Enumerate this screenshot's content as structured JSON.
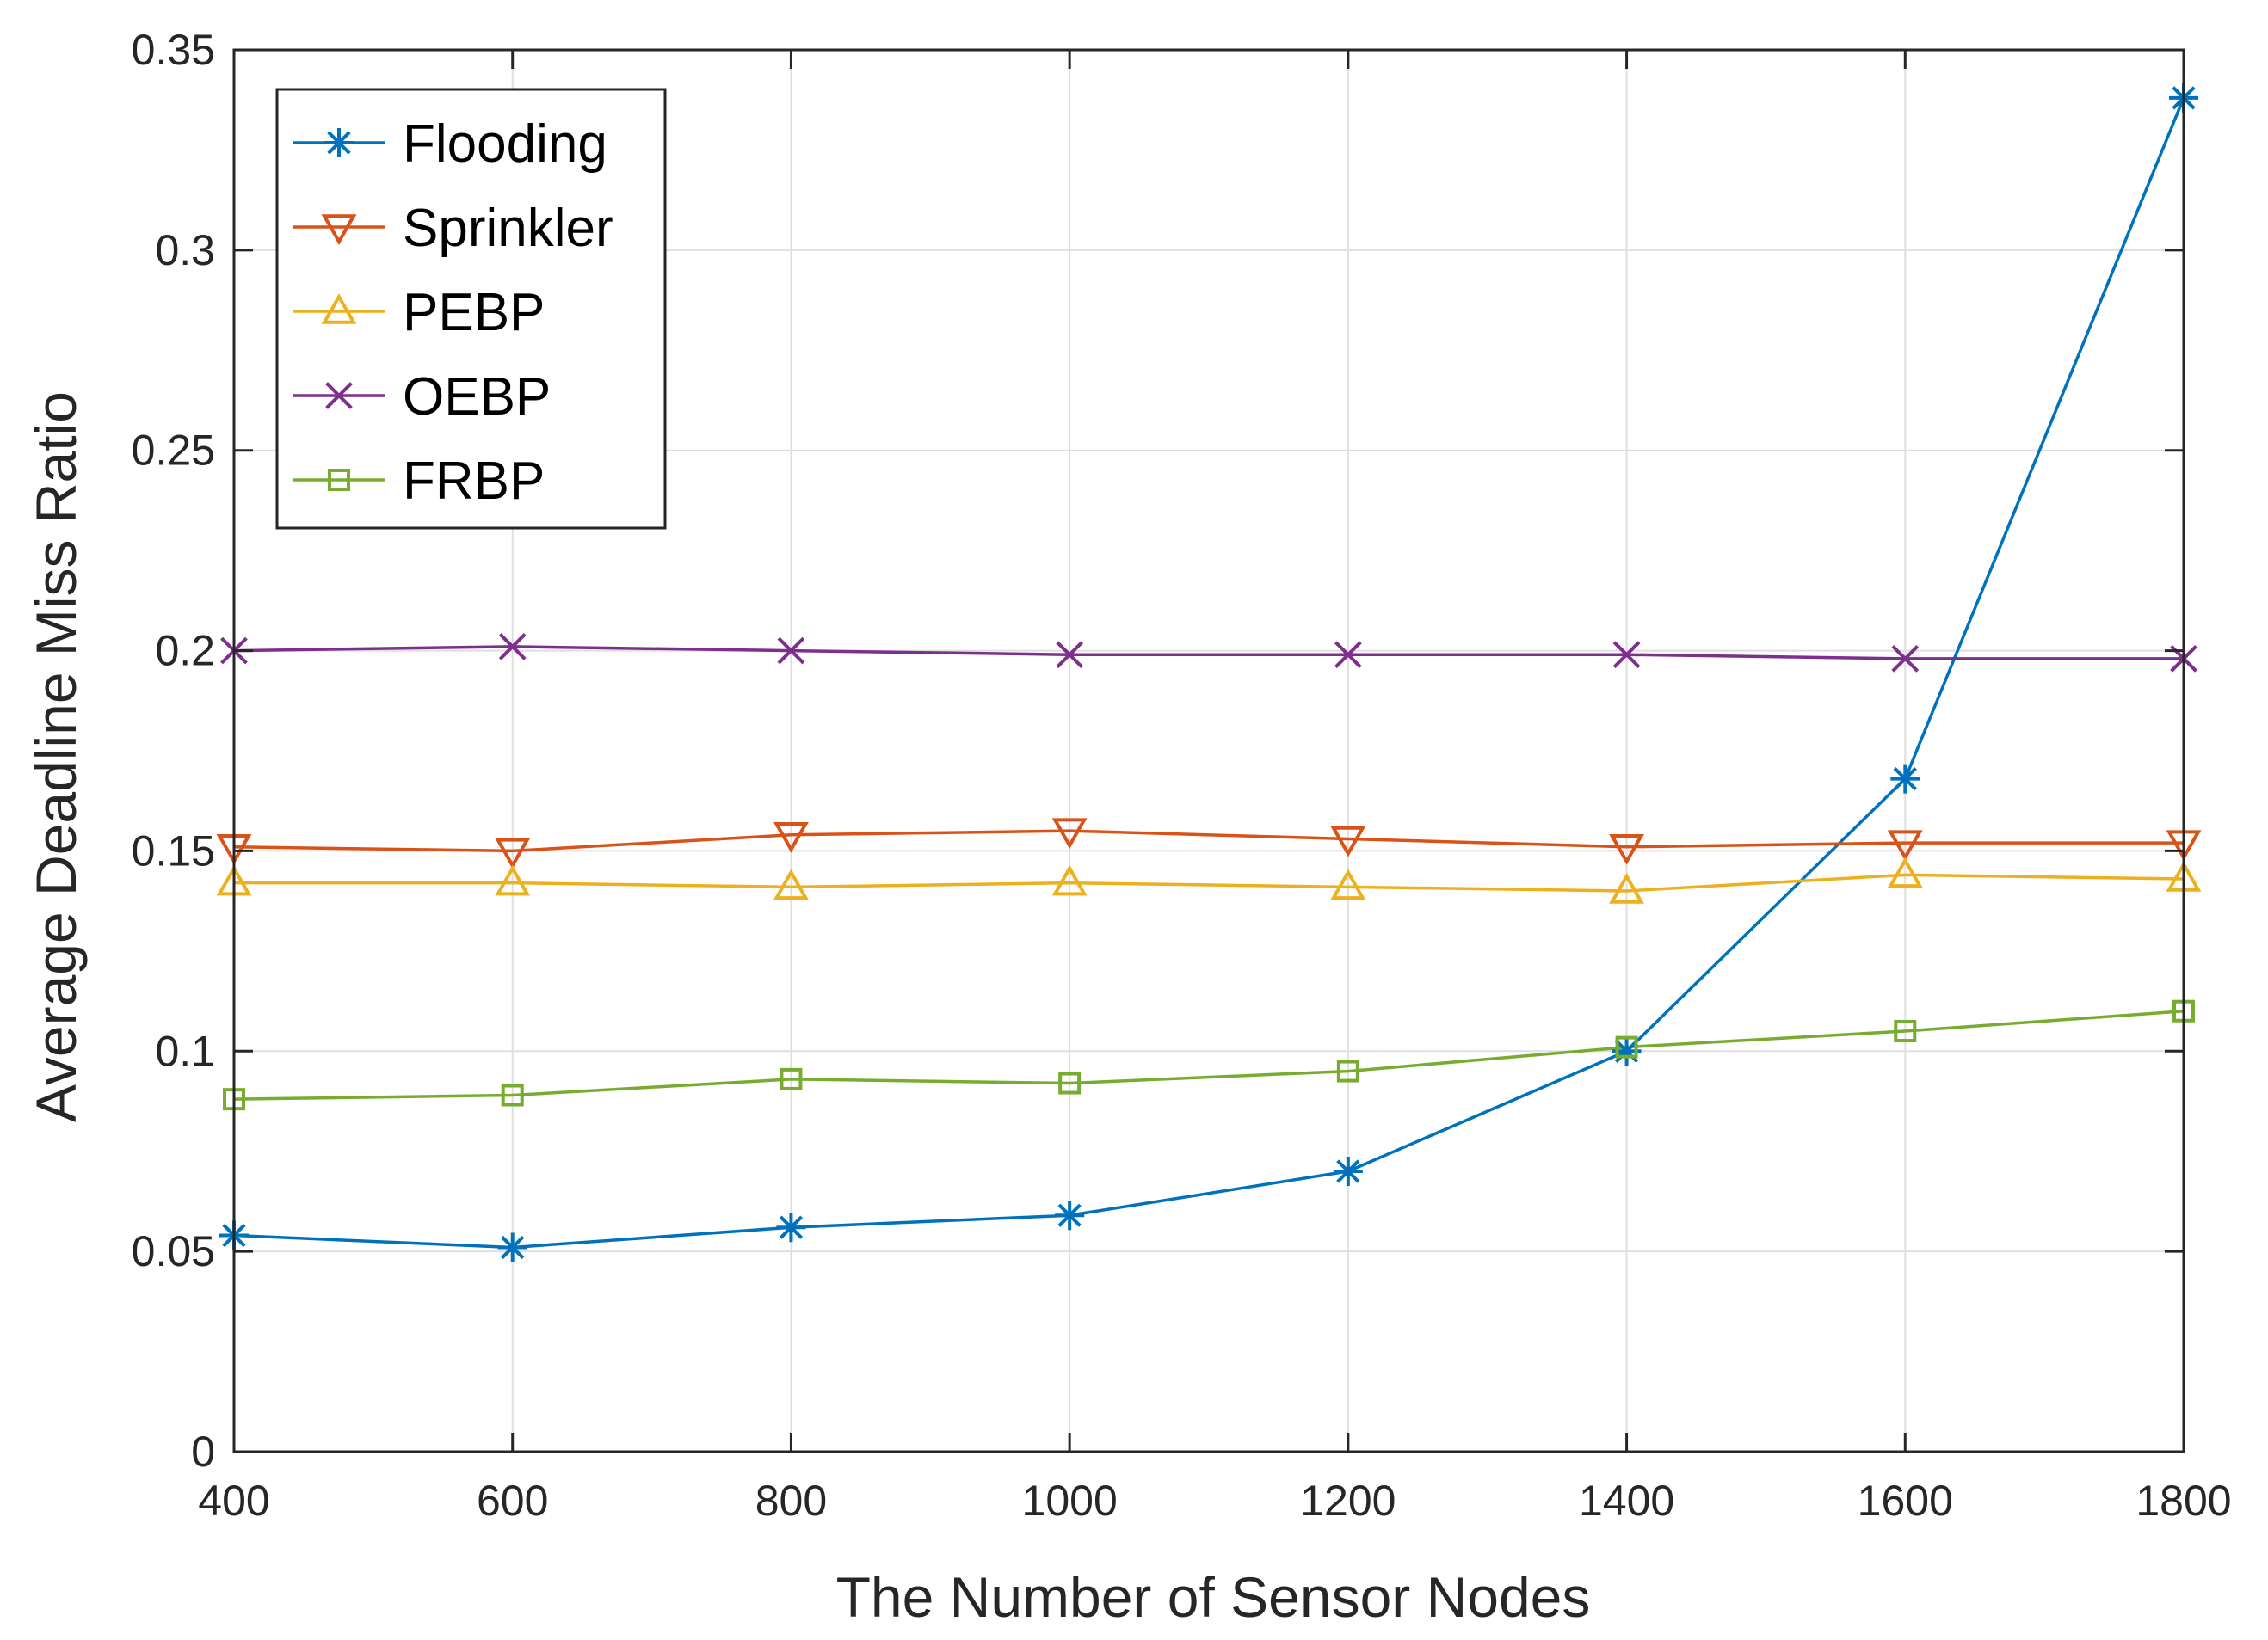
{
  "chart_data": {
    "type": "line",
    "title": "",
    "xlabel": "The Number of Sensor Nodes",
    "ylabel": "Average Deadline Miss Ratio",
    "x": [
      400,
      600,
      800,
      1000,
      1200,
      1400,
      1600,
      1800
    ],
    "xlim": [
      400,
      1800
    ],
    "ylim": [
      0,
      0.35
    ],
    "xticks": [
      400,
      600,
      800,
      1000,
      1200,
      1400,
      1600,
      1800
    ],
    "xtick_labels": [
      "400",
      "600",
      "800",
      "1000",
      "1200",
      "1400",
      "1600",
      "1800"
    ],
    "yticks": [
      0,
      0.05,
      0.1,
      0.15,
      0.2,
      0.25,
      0.3,
      0.35
    ],
    "ytick_labels": [
      "0",
      "0.05",
      "0.1",
      "0.15",
      "0.2",
      "0.25",
      "0.3",
      "0.35"
    ],
    "grid": true,
    "legend_position": "top-left",
    "series": [
      {
        "name": "Flooding",
        "color": "#0072BD",
        "marker": "asterisk",
        "values": [
          0.054,
          0.051,
          0.056,
          0.059,
          0.07,
          0.1,
          0.168,
          0.338
        ]
      },
      {
        "name": "Sprinkler",
        "color": "#D95319",
        "marker": "triangle-down",
        "values": [
          0.151,
          0.15,
          0.154,
          0.155,
          0.153,
          0.151,
          0.152,
          0.152
        ]
      },
      {
        "name": "PEBP",
        "color": "#EDB120",
        "marker": "triangle-up",
        "values": [
          0.142,
          0.142,
          0.141,
          0.142,
          0.141,
          0.14,
          0.144,
          0.143
        ]
      },
      {
        "name": "OEBP",
        "color": "#7E2F8E",
        "marker": "x",
        "values": [
          0.2,
          0.201,
          0.2,
          0.199,
          0.199,
          0.199,
          0.198,
          0.198
        ]
      },
      {
        "name": "FRBP",
        "color": "#77AC30",
        "marker": "square",
        "values": [
          0.088,
          0.089,
          0.093,
          0.092,
          0.095,
          0.101,
          0.105,
          0.11
        ]
      }
    ]
  }
}
